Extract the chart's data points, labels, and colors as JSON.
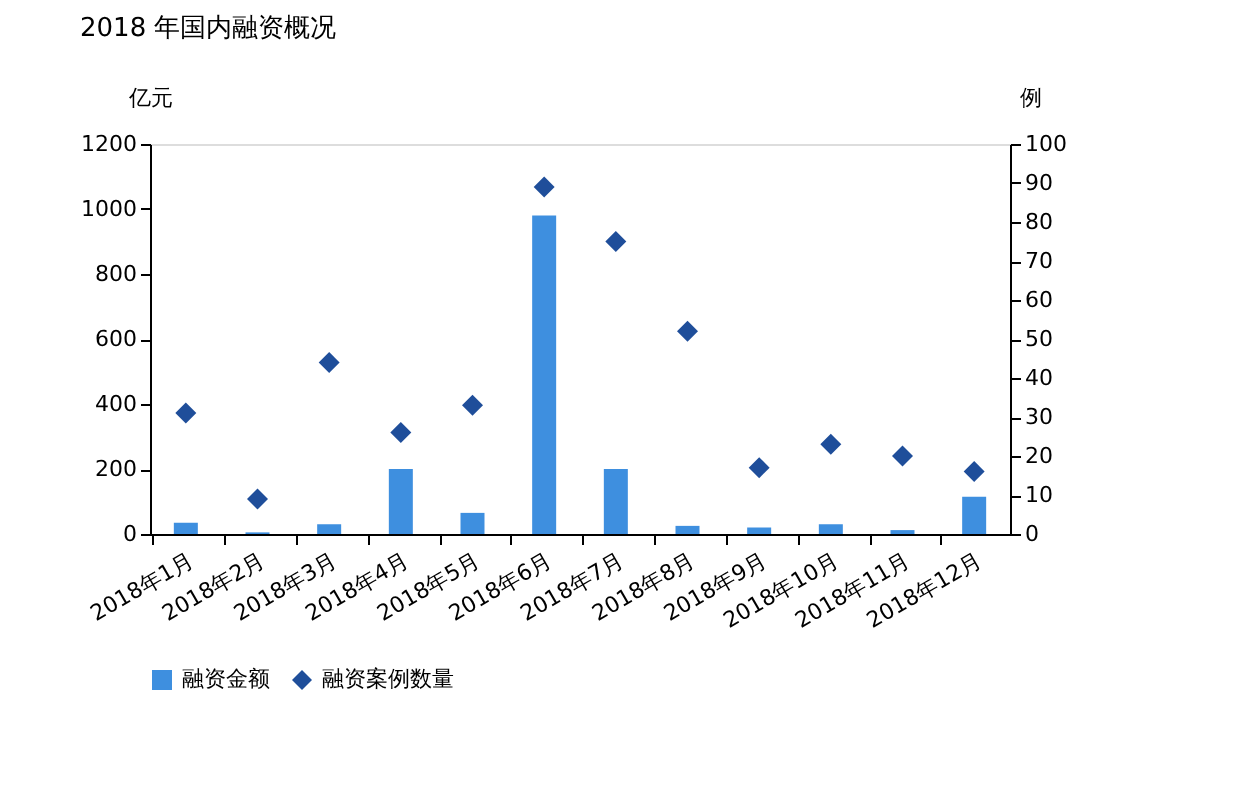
{
  "chart_data": {
    "type": "bar",
    "title": "2018 年国内融资概况",
    "ylabel": "亿元",
    "y2label": "例",
    "categories": [
      "2018年1月",
      "2018年2月",
      "2018年3月",
      "2018年4月",
      "2018年5月",
      "2018年6月",
      "2018年7月",
      "2018年8月",
      "2018年9月",
      "2018年10月",
      "2018年11月",
      "2018年12月"
    ],
    "series": [
      {
        "name": "融资金额",
        "color": "#3e8fdf",
        "values": [
          35,
          5,
          30,
          200,
          65,
          980,
          200,
          25,
          20,
          30,
          12,
          115
        ]
      },
      {
        "name": "融资案例数量",
        "type": "scatter",
        "axis": "y2",
        "marker": "diamond",
        "color": "#1f4e9a",
        "values": [
          31,
          9,
          44,
          26,
          33,
          89,
          75,
          52,
          17,
          23,
          20,
          16
        ]
      }
    ],
    "ylim": [
      0,
      1200
    ],
    "yticks": [
      0,
      200,
      400,
      600,
      800,
      1000,
      1200
    ],
    "y2lim": [
      0,
      100
    ],
    "y2ticks": [
      0,
      10,
      20,
      30,
      40,
      50,
      60,
      70,
      80,
      90,
      100
    ],
    "grid": false,
    "legend": "bottom"
  }
}
